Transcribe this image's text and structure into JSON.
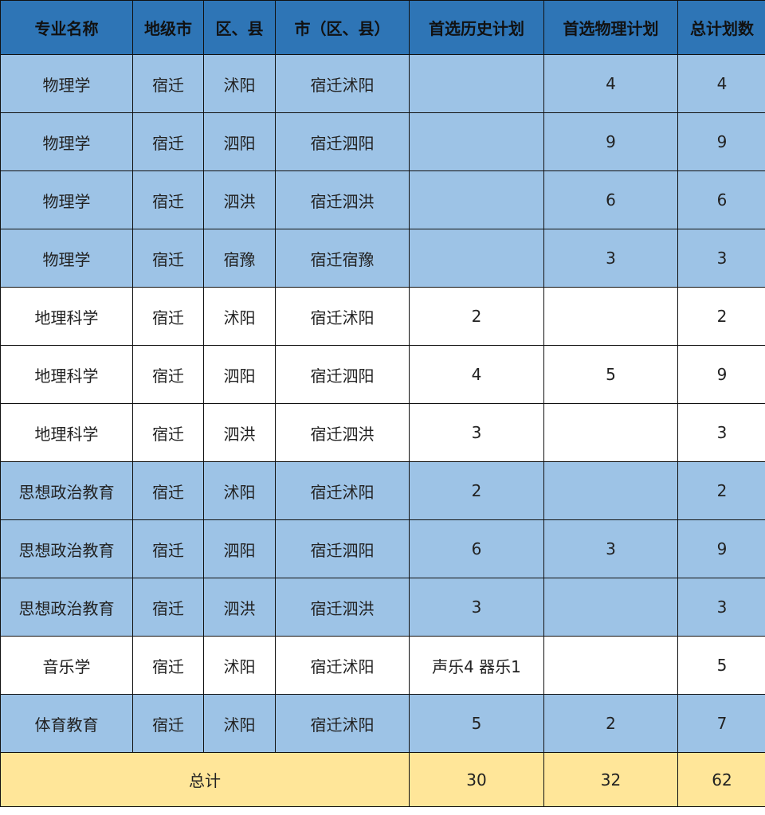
{
  "headers": [
    "专业名称",
    "地级市",
    "区、县",
    "市（区、县）",
    "首选历史计划",
    "首选物理计划",
    "总计划数"
  ],
  "rows": [
    {
      "major": "物理学",
      "city": "宿迁",
      "county": "沭阳",
      "city_county": "宿迁沭阳",
      "history": "",
      "physics": "4",
      "total": "4",
      "shade": "blue"
    },
    {
      "major": "物理学",
      "city": "宿迁",
      "county": "泗阳",
      "city_county": "宿迁泗阳",
      "history": "",
      "physics": "9",
      "total": "9",
      "shade": "blue"
    },
    {
      "major": "物理学",
      "city": "宿迁",
      "county": "泗洪",
      "city_county": "宿迁泗洪",
      "history": "",
      "physics": "6",
      "total": "6",
      "shade": "blue"
    },
    {
      "major": "物理学",
      "city": "宿迁",
      "county": "宿豫",
      "city_county": "宿迁宿豫",
      "history": "",
      "physics": "3",
      "total": "3",
      "shade": "blue"
    },
    {
      "major": "地理科学",
      "city": "宿迁",
      "county": "沭阳",
      "city_county": "宿迁沭阳",
      "history": "2",
      "physics": "",
      "total": "2",
      "shade": "white"
    },
    {
      "major": "地理科学",
      "city": "宿迁",
      "county": "泗阳",
      "city_county": "宿迁泗阳",
      "history": "4",
      "physics": "5",
      "total": "9",
      "shade": "white"
    },
    {
      "major": "地理科学",
      "city": "宿迁",
      "county": "泗洪",
      "city_county": "宿迁泗洪",
      "history": "3",
      "physics": "",
      "total": "3",
      "shade": "white"
    },
    {
      "major": "思想政治教育",
      "city": "宿迁",
      "county": "沭阳",
      "city_county": "宿迁沭阳",
      "history": "2",
      "physics": "",
      "total": "2",
      "shade": "blue"
    },
    {
      "major": "思想政治教育",
      "city": "宿迁",
      "county": "泗阳",
      "city_county": "宿迁泗阳",
      "history": "6",
      "physics": "3",
      "total": "9",
      "shade": "blue"
    },
    {
      "major": "思想政治教育",
      "city": "宿迁",
      "county": "泗洪",
      "city_county": "宿迁泗洪",
      "history": "3",
      "physics": "",
      "total": "3",
      "shade": "blue"
    },
    {
      "major": "音乐学",
      "city": "宿迁",
      "county": "沭阳",
      "city_county": "宿迁沭阳",
      "history": "声乐4 器乐1",
      "physics": "",
      "total": "5",
      "shade": "white"
    },
    {
      "major": "体育教育",
      "city": "宿迁",
      "county": "沭阳",
      "city_county": "宿迁沭阳",
      "history": "5",
      "physics": "2",
      "total": "7",
      "shade": "blue"
    }
  ],
  "summary": {
    "label": "总计",
    "history": "30",
    "physics": "32",
    "total": "62"
  },
  "colors": {
    "header": "#2e75b6",
    "blue_row": "#9dc3e6",
    "white_row": "#ffffff",
    "total_row": "#ffe699"
  }
}
